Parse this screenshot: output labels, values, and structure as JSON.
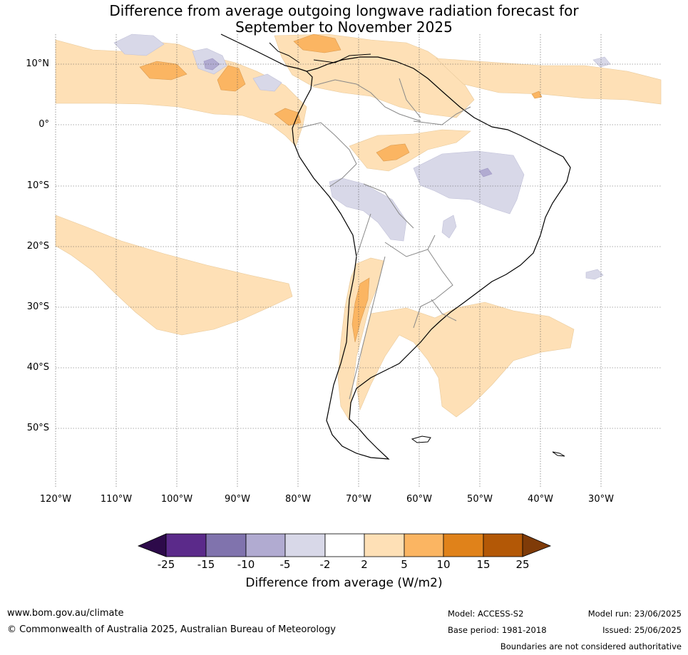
{
  "title_line1": "Difference from average outgoing longwave radiation forecast for",
  "title_line2": "September to November 2025",
  "lat_labels": [
    "10°N",
    "0°",
    "10°S",
    "20°S",
    "30°S",
    "40°S",
    "50°S"
  ],
  "lon_labels": [
    "120°W",
    "110°W",
    "100°W",
    "90°W",
    "80°W",
    "70°W",
    "60°W",
    "50°W",
    "40°W",
    "30°W"
  ],
  "colorbar": {
    "ticks": [
      "-25",
      "-15",
      "-10",
      "-5",
      "-2",
      "2",
      "5",
      "10",
      "15",
      "25"
    ],
    "colors": [
      "#2d0a4a",
      "#5b2a8a",
      "#8073ad",
      "#b1abd1",
      "#d8d8e8",
      "#ffffff",
      "#fee0b6",
      "#fbb562",
      "#e0821a",
      "#b35806",
      "#7f3b08"
    ],
    "label": "Difference from average (W/m2)"
  },
  "legend_key": {
    "slight_positive": "2 to 5",
    "moderate_positive": "5 to 10",
    "slight_negative": "-5 to -2",
    "moderate_negative": "-10 to -5"
  },
  "footer": {
    "website": "www.bom.gov.au/climate",
    "copyright": "© Commonwealth of Australia 2025, Australian Bureau of Meteorology",
    "model": "Model: ACCESS-S2",
    "base_period": "Base period: 1981-2018",
    "model_run": "Model run: 23/06/2025",
    "issued": "Issued: 25/06/2025",
    "disclaimer": "Boundaries are not considered authoritative"
  }
}
